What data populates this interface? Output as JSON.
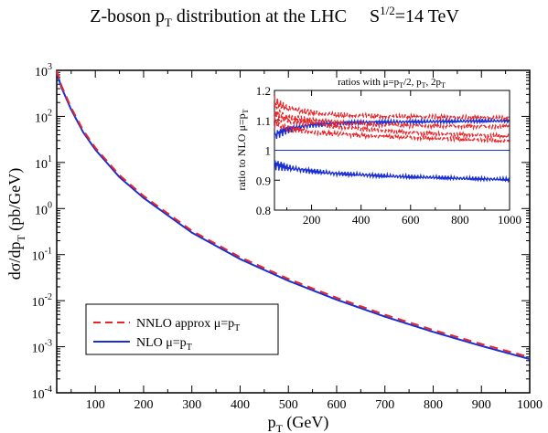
{
  "chart_data": [
    {
      "type": "line",
      "title": "Z-boson p_T distribution at the LHC     S^1/2=14 TeV",
      "title_parts": {
        "main": "Z-boson p",
        "sub": "T",
        "mid": " distribution at the LHC",
        "energy": "S",
        "energy_sup": "1/2",
        "energy_tail": "=14 TeV"
      },
      "xlabel": "p_T (GeV)",
      "xlabel_parts": {
        "main": "p",
        "sub": "T",
        "tail": " (GeV)"
      },
      "ylabel": "dσ/dp_T (pb/GeV)",
      "ylabel_parts": {
        "main": "dσ/dp",
        "sub": "T",
        "tail": " (pb/GeV)"
      },
      "xlim": [
        20,
        1000
      ],
      "ylim": [
        0.0001,
        1000
      ],
      "yscale": "log",
      "x_ticks": [
        100,
        200,
        300,
        400,
        500,
        600,
        700,
        800,
        900,
        1000
      ],
      "y_ticks": [
        -4,
        -3,
        -2,
        -1,
        0,
        1,
        2,
        3
      ],
      "y_tick_base": "10",
      "grid": false,
      "legend_position": "bottom-left",
      "legend": [
        {
          "label": "NNLO approx  μ=p_T",
          "label_main": "NNLO approx   μ=p",
          "label_sub": "T",
          "color": "#e8262a",
          "dash": "dashed"
        },
        {
          "label": "NLO  μ=p_T",
          "label_main": "NLO  μ=p",
          "label_sub": "T",
          "color": "#1a2fd6",
          "dash": "solid"
        }
      ],
      "series": [
        {
          "x": [
            20,
            30,
            50,
            75,
            100,
            150,
            200,
            300,
            400,
            500,
            600,
            700,
            800,
            900,
            1000
          ],
          "y": [
            900,
            420,
            140,
            45,
            19,
            4.8,
            1.7,
            0.3,
            0.08,
            0.027,
            0.0105,
            0.0045,
            0.0021,
            0.00104,
            0.00054
          ],
          "color": "#1a2fd6",
          "dash": "solid"
        },
        {
          "x": [
            20,
            30,
            50,
            75,
            100,
            150,
            200,
            300,
            400,
            500,
            600,
            700,
            800,
            900,
            1000
          ],
          "y": [
            980,
            460,
            154,
            49.5,
            20.9,
            5.3,
            1.87,
            0.33,
            0.088,
            0.0297,
            0.01155,
            0.00495,
            0.00231,
            0.001144,
            0.000594
          ],
          "color": "#e8262a",
          "dash": "dashed"
        }
      ]
    },
    {
      "type": "line",
      "title": "ratios with μ=p_T/2, p_T, 2p_T",
      "title_parts": {
        "a": "ratios with μ=p",
        "a_sub": "T",
        "b": "/2, p",
        "b_sub": "T",
        "c": ", 2p",
        "c_sub": "T"
      },
      "ylabel": "ratio to NLO μ=p_T",
      "ylabel_parts": {
        "main": "ratio to NLO μ=p",
        "sub": "T"
      },
      "xlim": [
        50,
        1000
      ],
      "ylim": [
        0.8,
        1.2
      ],
      "x_ticks": [
        200,
        400,
        600,
        800,
        1000
      ],
      "y_ticks": [
        0.8,
        0.9,
        1,
        1.1,
        1.2
      ],
      "y_tick_labels": [
        "0.8",
        "0.9",
        "1",
        "1.1",
        "1.2"
      ],
      "grid": false,
      "series": [
        {
          "x": [
            50,
            100,
            200,
            300,
            400,
            500,
            600,
            700,
            800,
            900,
            1000
          ],
          "y": [
            1.0,
            1.0,
            1.0,
            1.0,
            1.0,
            1.0,
            1.0,
            1.0,
            1.0,
            1.0,
            1.0
          ],
          "color": "#1a2fd6",
          "dash": "solid"
        },
        {
          "x": [
            50,
            100,
            200,
            300,
            400,
            500,
            600,
            700,
            800,
            900,
            1000
          ],
          "y": [
            1.05,
            1.07,
            1.085,
            1.09,
            1.093,
            1.094,
            1.095,
            1.096,
            1.097,
            1.098,
            1.098
          ],
          "color": "#1a2fd6",
          "dash": "solid"
        },
        {
          "x": [
            50,
            100,
            200,
            300,
            400,
            500,
            600,
            700,
            800,
            900,
            1000
          ],
          "y": [
            0.955,
            0.942,
            0.93,
            0.922,
            0.918,
            0.914,
            0.911,
            0.909,
            0.906,
            0.904,
            0.902
          ],
          "color": "#1a2fd6",
          "dash": "solid"
        },
        {
          "x": [
            50,
            100,
            200,
            300,
            400,
            500,
            600,
            700,
            800,
            900,
            1000
          ],
          "y": [
            1.16,
            1.14,
            1.125,
            1.118,
            1.115,
            1.113,
            1.112,
            1.111,
            1.11,
            1.109,
            1.108
          ],
          "color": "#e8262a",
          "dash": "dashed"
        },
        {
          "x": [
            50,
            100,
            200,
            300,
            400,
            500,
            600,
            700,
            800,
            900,
            1000
          ],
          "y": [
            1.13,
            1.11,
            1.1,
            1.093,
            1.088,
            1.085,
            1.083,
            1.082,
            1.081,
            1.08,
            1.08
          ],
          "color": "#e8262a",
          "dash": "dashed"
        },
        {
          "x": [
            50,
            100,
            200,
            300,
            400,
            500,
            600,
            700,
            800,
            900,
            1000
          ],
          "y": [
            1.11,
            1.1,
            1.09,
            1.08,
            1.072,
            1.065,
            1.06,
            1.056,
            1.053,
            1.05,
            1.047
          ],
          "color": "#e8262a",
          "dash": "dashed"
        },
        {
          "x": [
            50,
            100,
            200,
            300,
            400,
            500,
            600,
            700,
            800,
            900,
            1000
          ],
          "y": [
            1.09,
            1.075,
            1.062,
            1.055,
            1.05,
            1.046,
            1.043,
            1.04,
            1.037,
            1.034,
            1.03
          ],
          "color": "#e8262a",
          "dash": "dashed"
        }
      ]
    }
  ]
}
